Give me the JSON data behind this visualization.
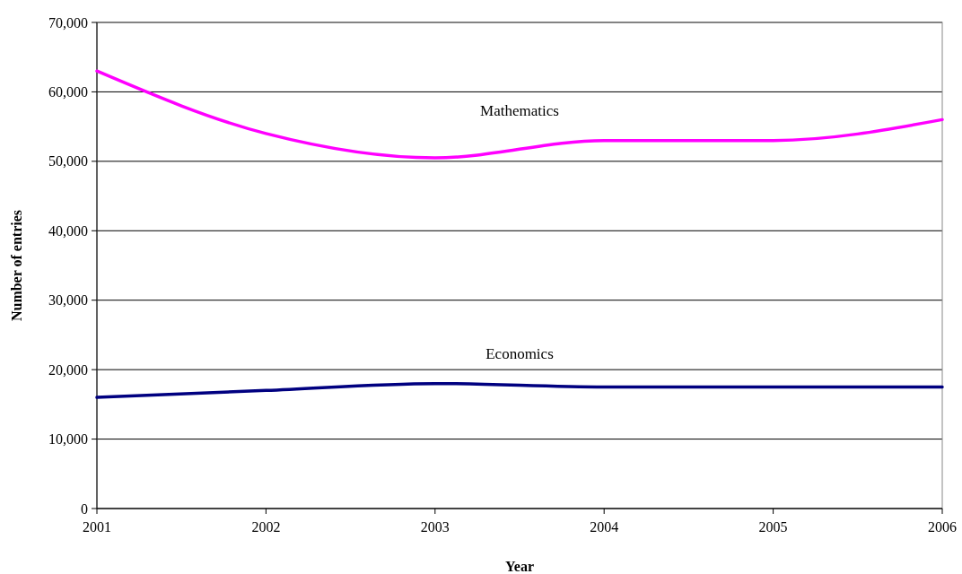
{
  "chart_data": {
    "type": "line",
    "xlabel": "Year",
    "ylabel": "Number of entries",
    "x": [
      2001,
      2002,
      2003,
      2004,
      2005,
      2006
    ],
    "xlim": [
      2001,
      2006
    ],
    "xticks": [
      2001,
      2002,
      2003,
      2004,
      2005,
      2006
    ],
    "ylim": [
      0,
      70000
    ],
    "yticks": [
      {
        "value": 0,
        "label": "0"
      },
      {
        "value": 10000,
        "label": "10,000"
      },
      {
        "value": 20000,
        "label": "20,000"
      },
      {
        "value": 30000,
        "label": "30,000"
      },
      {
        "value": 40000,
        "label": "40,000"
      },
      {
        "value": 50000,
        "label": "50,000"
      },
      {
        "value": 60000,
        "label": "60,000"
      },
      {
        "value": 70000,
        "label": "70,000"
      }
    ],
    "grid": "y",
    "marker": "none",
    "line_style": "solid",
    "series": [
      {
        "name": "Mathematics",
        "color": "#ff00ff",
        "values": [
          63000,
          54000,
          50500,
          53000,
          53000,
          56000
        ]
      },
      {
        "name": "Economics",
        "color": "#000080",
        "values": [
          16000,
          17000,
          18000,
          17500,
          17500,
          17500
        ]
      }
    ]
  }
}
